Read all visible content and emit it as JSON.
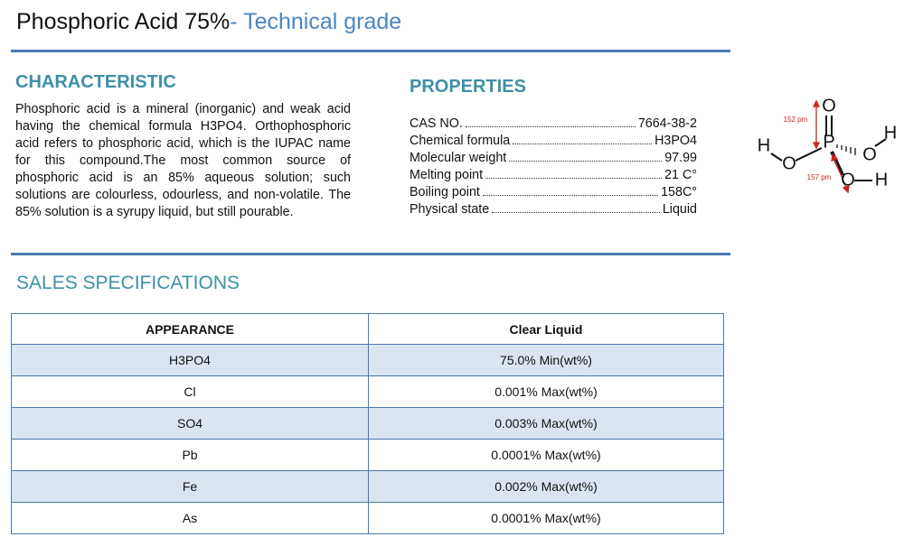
{
  "header": {
    "title": "Phosphoric Acid 75%",
    "subtitle": "- Technical grade"
  },
  "characteristic": {
    "heading": "CHARACTERISTIC",
    "text": "Phosphoric acid is a mineral (inorganic) and weak acid having the chemical formula H3PO4. Orthophosphoric acid refers to phosphoric acid, which is the IUPAC name for this compound.The most common source of phosphoric acid is an 85% aqueous solution; such solutions are colourless, odourless, and non-volatile. The 85% solution is a syrupy liquid, but still pourable."
  },
  "properties": {
    "heading": "PROPERTIES",
    "rows": [
      [
        "CAS NO.",
        "7664-38-2"
      ],
      [
        "Chemical formula",
        "H3PO4"
      ],
      [
        "Molecular weight",
        "97.99"
      ],
      [
        "Melting point",
        "21 C°"
      ],
      [
        "Boiling point",
        "158C°"
      ],
      [
        "Physical state",
        "Liquid"
      ]
    ]
  },
  "molecule": {
    "atoms": [
      "O",
      "P",
      "O",
      "H",
      "O",
      "H",
      "O",
      "H"
    ],
    "bond_lengths": [
      "152 pm",
      "157 pm"
    ]
  },
  "sales": {
    "heading": "SALES SPECIFICATIONS",
    "table": {
      "header": [
        "APPEARANCE",
        "Clear Liquid"
      ],
      "rows": [
        [
          "H3PO4",
          "75.0% Min(wt%)"
        ],
        [
          "Cl",
          "0.001% Max(wt%)"
        ],
        [
          "SO4",
          "0.003% Max(wt%)"
        ],
        [
          "Pb",
          "0.0001% Max(wt%)"
        ],
        [
          "Fe",
          "0.002% Max(wt%)"
        ],
        [
          "As",
          "0.0001% Max(wt%)"
        ]
      ]
    }
  }
}
